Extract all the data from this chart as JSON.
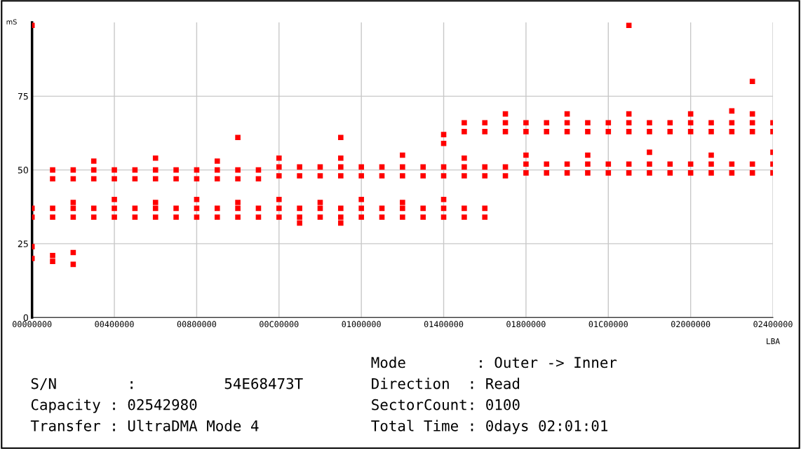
{
  "chart_data": {
    "type": "scatter",
    "xlabel": "LBA",
    "ylabel": "mS",
    "categories": [
      "00000000",
      null,
      null,
      null,
      "00400000",
      null,
      null,
      null,
      "00800000",
      null,
      null,
      null,
      "00C00000",
      null,
      null,
      null,
      "01000000",
      null,
      null,
      null,
      "01400000",
      null,
      null,
      null,
      "01800000",
      null,
      null,
      null,
      "01C00000",
      null,
      null,
      null,
      "02000000",
      null,
      null,
      null,
      "02400000"
    ],
    "ylim": [
      0,
      100
    ],
    "yticks": [
      0,
      25,
      50,
      75
    ],
    "grid": true,
    "marker": "square",
    "series": [
      {
        "color": "#ff0000",
        "values": [
          24,
          21,
          22,
          null,
          null,
          null,
          null,
          null,
          null,
          null,
          null,
          null,
          null,
          null,
          null,
          null,
          null,
          null,
          null,
          null,
          null,
          null,
          null,
          null,
          null,
          null,
          null,
          null,
          null,
          null,
          null,
          null,
          null,
          null,
          null,
          null,
          null
        ]
      },
      {
        "color": "#ff0000",
        "values": [
          20,
          19,
          18,
          null,
          null,
          null,
          null,
          null,
          null,
          null,
          null,
          null,
          null,
          null,
          null,
          null,
          null,
          null,
          null,
          null,
          null,
          null,
          null,
          null,
          null,
          null,
          null,
          null,
          null,
          null,
          null,
          null,
          null,
          null,
          null,
          null,
          null
        ]
      },
      {
        "color": "#ff0000",
        "values": [
          34,
          34,
          34,
          34,
          34,
          34,
          34,
          34,
          34,
          34,
          34,
          34,
          34,
          34,
          34,
          34,
          34,
          34,
          34,
          34,
          34,
          34,
          34,
          null,
          null,
          null,
          null,
          null,
          null,
          null,
          null,
          null,
          null,
          null,
          null,
          null,
          null
        ]
      },
      {
        "color": "#ff0000",
        "values": [
          37,
          37,
          37,
          37,
          37,
          37,
          37,
          37,
          37,
          37,
          37,
          37,
          37,
          37,
          37,
          37,
          37,
          37,
          37,
          37,
          37,
          37,
          37,
          null,
          null,
          null,
          null,
          null,
          null,
          null,
          null,
          null,
          null,
          null,
          null,
          null,
          null
        ]
      },
      {
        "color": "#ff0000",
        "values": [
          null,
          null,
          39,
          null,
          40,
          null,
          39,
          null,
          40,
          null,
          39,
          null,
          40,
          null,
          39,
          null,
          40,
          null,
          39,
          null,
          40,
          null,
          null,
          null,
          null,
          null,
          null,
          null,
          null,
          null,
          null,
          null,
          null,
          null,
          null,
          null,
          null
        ]
      },
      {
        "color": "#ff0000",
        "values": [
          null,
          null,
          null,
          null,
          null,
          null,
          null,
          null,
          null,
          null,
          null,
          null,
          null,
          32,
          null,
          32,
          null,
          null,
          null,
          null,
          null,
          null,
          null,
          null,
          null,
          null,
          null,
          null,
          null,
          null,
          null,
          null,
          null,
          null,
          null,
          null,
          null
        ]
      },
      {
        "color": "#ff0000",
        "values": [
          null,
          47,
          47,
          47,
          47,
          47,
          47,
          47,
          47,
          47,
          47,
          47,
          48,
          48,
          48,
          48,
          48,
          48,
          48,
          48,
          48,
          48,
          48,
          48,
          49,
          49,
          49,
          49,
          49,
          49,
          49,
          49,
          49,
          49,
          49,
          49,
          49
        ]
      },
      {
        "color": "#ff0000",
        "values": [
          null,
          50,
          50,
          50,
          50,
          50,
          50,
          50,
          50,
          50,
          50,
          50,
          51,
          51,
          51,
          51,
          51,
          51,
          51,
          51,
          51,
          51,
          51,
          51,
          52,
          52,
          52,
          52,
          52,
          52,
          52,
          52,
          52,
          52,
          52,
          52,
          52
        ]
      },
      {
        "color": "#ff0000",
        "values": [
          null,
          null,
          null,
          53,
          null,
          null,
          54,
          null,
          null,
          53,
          null,
          null,
          54,
          null,
          null,
          54,
          null,
          null,
          55,
          null,
          null,
          54,
          null,
          null,
          55,
          null,
          null,
          55,
          null,
          null,
          56,
          null,
          null,
          55,
          null,
          null,
          56
        ]
      },
      {
        "color": "#ff0000",
        "values": [
          null,
          null,
          null,
          null,
          null,
          null,
          null,
          null,
          null,
          null,
          null,
          null,
          null,
          null,
          null,
          null,
          null,
          null,
          null,
          null,
          null,
          63,
          63,
          63,
          63,
          63,
          63,
          63,
          63,
          63,
          63,
          63,
          63,
          63,
          63,
          63,
          63
        ]
      },
      {
        "color": "#ff0000",
        "values": [
          null,
          null,
          null,
          null,
          null,
          null,
          null,
          null,
          null,
          null,
          null,
          null,
          null,
          null,
          null,
          null,
          null,
          null,
          null,
          null,
          null,
          66,
          66,
          66,
          66,
          66,
          66,
          66,
          66,
          66,
          66,
          66,
          66,
          66,
          66,
          66,
          66
        ]
      },
      {
        "color": "#ff0000",
        "values": [
          null,
          null,
          null,
          null,
          null,
          null,
          null,
          null,
          null,
          null,
          null,
          null,
          null,
          null,
          null,
          null,
          null,
          null,
          null,
          null,
          null,
          null,
          null,
          69,
          null,
          null,
          69,
          null,
          null,
          69,
          null,
          null,
          69,
          null,
          70,
          69,
          null
        ]
      },
      {
        "color": "#ff0000",
        "values": [
          99,
          null,
          null,
          null,
          null,
          null,
          null,
          null,
          null,
          null,
          61,
          null,
          null,
          null,
          null,
          61,
          null,
          null,
          null,
          null,
          62,
          null,
          null,
          null,
          null,
          null,
          null,
          null,
          null,
          99,
          null,
          null,
          null,
          null,
          null,
          80,
          null
        ]
      },
      {
        "color": "#ff0000",
        "values": [
          null,
          null,
          null,
          null,
          null,
          null,
          null,
          null,
          null,
          null,
          null,
          null,
          null,
          null,
          null,
          null,
          null,
          null,
          null,
          null,
          59,
          null,
          null,
          null,
          null,
          null,
          null,
          null,
          null,
          null,
          null,
          null,
          null,
          null,
          null,
          null,
          null
        ]
      }
    ],
    "annotations": [
      "S/N        :          54E68473T",
      "Capacity : 02542980",
      "Transfer : UltraDMA Mode 4",
      "Mode        : Outer -> Inner",
      "Direction  : Read",
      "SectorCount: 0100",
      "Total Time : 0days 02:01:01"
    ]
  }
}
